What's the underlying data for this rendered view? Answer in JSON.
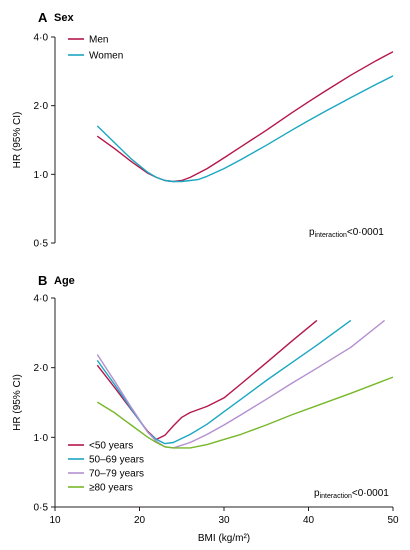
{
  "chart_data": [
    {
      "type": "line",
      "panel_letter": "A",
      "title": "Sex",
      "xlabel": "",
      "ylabel": "HR (95% CI)",
      "y_scale": "log",
      "xlim": [
        10,
        50
      ],
      "ylim": [
        0.5,
        4.0
      ],
      "y_ticks": [
        "0·5",
        "1·0",
        "2·0",
        "4·0"
      ],
      "y_tick_values": [
        0.5,
        1.0,
        2.0,
        4.0
      ],
      "grid": false,
      "legend_position": "top-left",
      "annotation": {
        "p": "p",
        "sub": "interaction",
        "rest": "<0·0001"
      },
      "series": [
        {
          "name": "Men",
          "color": "#b5174b",
          "x": [
            15,
            17,
            19,
            21,
            22,
            23,
            24,
            25,
            26,
            28,
            30,
            32,
            35,
            38,
            40,
            42,
            45,
            48,
            50
          ],
          "y": [
            1.47,
            1.3,
            1.14,
            1.01,
            0.97,
            0.94,
            0.93,
            0.94,
            0.97,
            1.06,
            1.18,
            1.32,
            1.56,
            1.86,
            2.08,
            2.32,
            2.72,
            3.15,
            3.45
          ]
        },
        {
          "name": "Women",
          "color": "#1ba7c2",
          "x": [
            15,
            17,
            19,
            21,
            22,
            23,
            24,
            25,
            26,
            27,
            28,
            30,
            32,
            35,
            38,
            40,
            42,
            45,
            48,
            50
          ],
          "y": [
            1.63,
            1.38,
            1.17,
            1.02,
            0.97,
            0.94,
            0.93,
            0.93,
            0.94,
            0.95,
            0.98,
            1.06,
            1.16,
            1.34,
            1.56,
            1.72,
            1.89,
            2.17,
            2.48,
            2.7
          ]
        }
      ]
    },
    {
      "type": "line",
      "panel_letter": "B",
      "title": "Age",
      "xlabel": "BMI (kg/m²)",
      "ylabel": "HR (95% CI)",
      "y_scale": "log",
      "xlim": [
        10,
        50
      ],
      "ylim": [
        0.5,
        4.0
      ],
      "x_ticks": [
        10,
        20,
        30,
        40,
        50
      ],
      "y_ticks": [
        "0·5",
        "1·0",
        "2·0",
        "4·0"
      ],
      "y_tick_values": [
        0.5,
        1.0,
        2.0,
        4.0
      ],
      "grid": false,
      "legend_position": "bottom-left",
      "annotation": {
        "p": "p",
        "sub": "interaction",
        "rest": "<0·0001"
      },
      "series": [
        {
          "name": "<50 years",
          "color": "#b5174b",
          "x": [
            15,
            17,
            19,
            21,
            22,
            23,
            24,
            25,
            26,
            28,
            30,
            32,
            35,
            38,
            41
          ],
          "y": [
            2.05,
            1.65,
            1.32,
            1.06,
            0.98,
            1.02,
            1.12,
            1.22,
            1.28,
            1.36,
            1.48,
            1.7,
            2.1,
            2.6,
            3.2
          ]
        },
        {
          "name": "50–69 years",
          "color": "#1ba7c2",
          "x": [
            15,
            17,
            19,
            21,
            22,
            23,
            24,
            26,
            28,
            30,
            32,
            35,
            38,
            41,
            45
          ],
          "y": [
            2.15,
            1.7,
            1.33,
            1.05,
            0.98,
            0.94,
            0.95,
            1.03,
            1.14,
            1.29,
            1.46,
            1.76,
            2.1,
            2.5,
            3.2
          ]
        },
        {
          "name": "70–79 years",
          "color": "#b48fd0",
          "x": [
            15,
            17,
            19,
            21,
            22,
            23,
            24,
            26,
            28,
            30,
            32,
            35,
            38,
            41,
            45,
            49
          ],
          "y": [
            2.28,
            1.76,
            1.35,
            1.05,
            0.96,
            0.91,
            0.9,
            0.95,
            1.03,
            1.13,
            1.25,
            1.46,
            1.71,
            1.99,
            2.45,
            3.2
          ]
        },
        {
          "name": "≥80 years",
          "color": "#76b82a",
          "x": [
            15,
            17,
            19,
            21,
            22,
            23,
            24,
            26,
            28,
            30,
            32,
            35,
            38,
            41,
            45,
            50
          ],
          "y": [
            1.42,
            1.28,
            1.13,
            1.0,
            0.95,
            0.91,
            0.9,
            0.9,
            0.93,
            0.98,
            1.03,
            1.13,
            1.25,
            1.37,
            1.55,
            1.82
          ]
        }
      ]
    }
  ]
}
